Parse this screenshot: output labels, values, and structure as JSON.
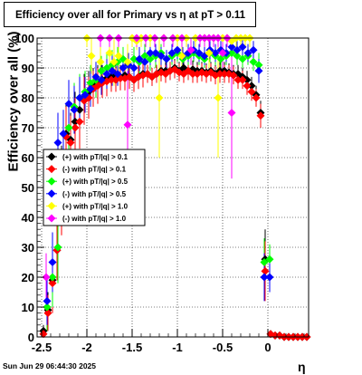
{
  "title": "Efficiency over all for Primary vs    η at pT > 0.11",
  "timestamp": "Sun Jun 29 06:44:30 2025",
  "chart_data": {
    "type": "scatter",
    "xlabel": "η",
    "ylabel": "Efficiency over all (%)",
    "xlim": [
      -2.55,
      0.45
    ],
    "ylim": [
      0,
      100
    ],
    "grid": true,
    "legend_position": "left-middle",
    "x_ticks": [
      "-2.5",
      "-2",
      "-1.5",
      "-1",
      "-0.5",
      "0"
    ],
    "y_ticks": [
      "0",
      "10",
      "20",
      "30",
      "40",
      "50",
      "60",
      "70",
      "80",
      "90",
      "100"
    ],
    "series": [
      {
        "name": "(+) with pT/|q| > 0.1",
        "color": "#000000",
        "x": [
          -2.48,
          -2.43,
          -2.38,
          -2.33,
          -2.28,
          -2.23,
          -2.18,
          -2.13,
          -2.08,
          -2.03,
          -1.98,
          -1.93,
          -1.88,
          -1.83,
          -1.78,
          -1.73,
          -1.68,
          -1.63,
          -1.58,
          -1.53,
          -1.48,
          -1.43,
          -1.38,
          -1.33,
          -1.28,
          -1.23,
          -1.18,
          -1.13,
          -1.08,
          -1.03,
          -0.98,
          -0.93,
          -0.88,
          -0.83,
          -0.78,
          -0.73,
          -0.68,
          -0.63,
          -0.58,
          -0.53,
          -0.48,
          -0.43,
          -0.38,
          -0.33,
          -0.28,
          -0.23,
          -0.18,
          -0.13,
          -0.08,
          -0.03,
          0.03,
          0.08,
          0.13,
          0.18,
          0.23,
          0.28,
          0.33,
          0.38,
          0.43
        ],
        "y": [
          2,
          9,
          19,
          29,
          50,
          68,
          66,
          72,
          76,
          80,
          82,
          84,
          85,
          86,
          86.5,
          87,
          87.5,
          87,
          87.5,
          87,
          86,
          87,
          88,
          88,
          87,
          88,
          89,
          89,
          89,
          90,
          89,
          90,
          89,
          89.5,
          89,
          89,
          88.5,
          89,
          88,
          89,
          89,
          88.5,
          88,
          88,
          87,
          86,
          84,
          81,
          75,
          26,
          1,
          0.5,
          0.5,
          0,
          0,
          0,
          0,
          0,
          0
        ],
        "err": [
          2,
          6,
          10,
          10,
          14,
          10,
          9,
          10,
          9,
          8,
          7,
          6,
          6,
          5,
          5,
          4,
          4,
          4,
          4,
          4,
          4,
          4,
          4,
          3,
          3,
          3,
          3,
          3,
          3,
          3,
          3,
          3,
          3,
          3,
          3,
          3,
          3,
          3,
          3,
          3,
          3,
          3,
          3,
          3,
          3,
          3,
          3,
          3,
          4,
          10,
          1,
          1,
          1,
          0,
          0,
          0,
          0,
          0,
          0
        ]
      },
      {
        "name": "(-) with pT/|q| > 0.1",
        "color": "#ff0000",
        "x": [
          -2.48,
          -2.43,
          -2.38,
          -2.33,
          -2.28,
          -2.23,
          -2.18,
          -2.13,
          -2.08,
          -2.03,
          -1.98,
          -1.93,
          -1.88,
          -1.83,
          -1.78,
          -1.73,
          -1.68,
          -1.63,
          -1.58,
          -1.53,
          -1.48,
          -1.43,
          -1.38,
          -1.33,
          -1.28,
          -1.23,
          -1.18,
          -1.13,
          -1.08,
          -1.03,
          -0.98,
          -0.93,
          -0.88,
          -0.83,
          -0.78,
          -0.73,
          -0.68,
          -0.63,
          -0.58,
          -0.53,
          -0.48,
          -0.43,
          -0.38,
          -0.33,
          -0.28,
          -0.23,
          -0.18,
          -0.13,
          -0.08,
          -0.03,
          0.03,
          0.08,
          0.13,
          0.18,
          0.23,
          0.28,
          0.33,
          0.38,
          0.43
        ],
        "y": [
          1,
          8,
          18,
          29,
          48,
          67,
          65,
          70,
          72,
          79,
          80,
          83,
          84,
          85,
          85.5,
          86,
          86,
          86.5,
          86.5,
          87,
          86,
          87,
          87.5,
          88,
          87,
          88,
          88.5,
          88,
          89,
          89.5,
          88.5,
          88,
          89,
          88,
          88,
          88.5,
          88,
          88.5,
          87.5,
          88,
          88,
          88,
          87.5,
          86,
          86,
          84,
          82,
          80,
          74,
          22,
          1,
          0.5,
          0.5,
          0,
          0,
          0,
          0,
          0,
          0
        ],
        "err": [
          2,
          6,
          10,
          10,
          14,
          10,
          9,
          10,
          9,
          8,
          7,
          6,
          6,
          5,
          5,
          4,
          4,
          4,
          4,
          4,
          4,
          4,
          4,
          3,
          3,
          3,
          3,
          3,
          3,
          3,
          3,
          3,
          3,
          3,
          3,
          3,
          3,
          3,
          3,
          3,
          3,
          3,
          3,
          3,
          3,
          3,
          3,
          3,
          4,
          10,
          1,
          1,
          1,
          0,
          0,
          0,
          0,
          0,
          0
        ]
      },
      {
        "name": "(+) with pT/|q| > 0.5",
        "color": "#00ff00",
        "x": [
          -2.44,
          -2.38,
          -2.32,
          -2.2,
          -2.14,
          -2.08,
          -2.02,
          -1.96,
          -1.9,
          -1.84,
          -1.78,
          -1.72,
          -1.66,
          -1.6,
          -1.54,
          -1.48,
          -1.42,
          -1.36,
          -1.3,
          -1.24,
          -1.18,
          -1.12,
          -1.06,
          -1.0,
          -0.94,
          -0.88,
          -0.82,
          -0.76,
          -0.7,
          -0.64,
          -0.58,
          -0.52,
          -0.46,
          -0.4,
          -0.34,
          -0.28,
          -0.22,
          -0.16,
          -0.1,
          -0.04,
          0.02
        ],
        "y": [
          10,
          20,
          30,
          70,
          77,
          80,
          82,
          85,
          86,
          89,
          90,
          91,
          92,
          93,
          91,
          93,
          92,
          94,
          93,
          94,
          95,
          93,
          94,
          95,
          93,
          94,
          95,
          94,
          93,
          95,
          94,
          93,
          94,
          95,
          94,
          93,
          94,
          92,
          91,
          25,
          26
        ],
        "err": [
          8,
          10,
          12,
          10,
          8,
          8,
          7,
          6,
          6,
          5,
          5,
          5,
          5,
          4,
          4,
          4,
          4,
          4,
          4,
          4,
          3,
          3,
          3,
          3,
          3,
          3,
          3,
          3,
          3,
          3,
          3,
          3,
          3,
          3,
          3,
          3,
          3,
          3,
          4,
          8,
          5
        ]
      },
      {
        "name": "(-) with pT/|q| > 0.5",
        "color": "#0000ff",
        "x": [
          -2.44,
          -2.38,
          -2.32,
          -2.26,
          -2.2,
          -2.14,
          -2.08,
          -2.02,
          -1.96,
          -1.9,
          -1.84,
          -1.78,
          -1.72,
          -1.66,
          -1.6,
          -1.54,
          -1.48,
          -1.42,
          -1.36,
          -1.3,
          -1.24,
          -1.18,
          -1.12,
          -1.06,
          -1.0,
          -0.94,
          -0.88,
          -0.82,
          -0.76,
          -0.7,
          -0.64,
          -0.58,
          -0.52,
          -0.46,
          -0.4,
          -0.34,
          -0.28,
          -0.22,
          -0.16,
          -0.1,
          -0.04,
          0.02
        ],
        "y": [
          12,
          25,
          65,
          68,
          78,
          76,
          80,
          81,
          83,
          87,
          86,
          88,
          89,
          88,
          90,
          91,
          90,
          93,
          92,
          95,
          95,
          94,
          93,
          95,
          96,
          94,
          95,
          96,
          95,
          94,
          96,
          95,
          96,
          95,
          97,
          96,
          97,
          95,
          96,
          89,
          20,
          20
        ],
        "err": [
          8,
          10,
          10,
          8,
          8,
          8,
          7,
          6,
          6,
          5,
          5,
          5,
          5,
          4,
          4,
          4,
          4,
          4,
          4,
          4,
          3,
          3,
          3,
          3,
          3,
          3,
          3,
          3,
          3,
          3,
          3,
          3,
          3,
          3,
          3,
          3,
          3,
          3,
          3,
          4,
          8,
          5
        ]
      },
      {
        "name": "(+) with pT/|q| > 1.0",
        "color": "#ffff00",
        "x": [
          -2.0,
          -1.95,
          -1.85,
          -1.75,
          -1.7,
          -1.65,
          -1.55,
          -1.5,
          -1.45,
          -1.4,
          -1.3,
          -1.2,
          -1.15,
          -1.05,
          -1.0,
          -0.95,
          -0.9,
          -0.8,
          -0.7,
          -0.65,
          -0.6,
          -0.55,
          -0.5,
          -0.45,
          -0.4,
          -0.35,
          -0.3,
          -0.25,
          -0.2
        ],
        "y": [
          100,
          94,
          92,
          95,
          92,
          94,
          92,
          100,
          99,
          100,
          100,
          80,
          100,
          100,
          100,
          94,
          100,
          100,
          100,
          95,
          100,
          80,
          100,
          100,
          99,
          100,
          100,
          100,
          100
        ],
        "err": [
          3,
          6,
          6,
          5,
          8,
          6,
          6,
          3,
          3,
          3,
          3,
          20,
          3,
          3,
          3,
          5,
          3,
          3,
          3,
          5,
          3,
          20,
          3,
          3,
          3,
          3,
          3,
          3,
          3
        ]
      },
      {
        "name": "(-) with pT/|q| > 1.0",
        "color": "#ff00ff",
        "x": [
          -2.45,
          -1.85,
          -1.75,
          -1.65,
          -1.55,
          -1.45,
          -1.35,
          -1.25,
          -1.15,
          -1.05,
          -0.95,
          -0.85,
          -0.75,
          -0.7,
          -0.65,
          -0.6,
          -0.55,
          -0.5,
          -0.45,
          -0.4
        ],
        "y": [
          20,
          100,
          100,
          100,
          71,
          100,
          100,
          100,
          100,
          100,
          100,
          96,
          100,
          100,
          100,
          100,
          100,
          95,
          100,
          75
        ],
        "err": [
          8,
          3,
          3,
          3,
          18,
          3,
          3,
          3,
          3,
          3,
          3,
          5,
          3,
          3,
          3,
          3,
          3,
          5,
          3,
          22
        ]
      }
    ]
  }
}
